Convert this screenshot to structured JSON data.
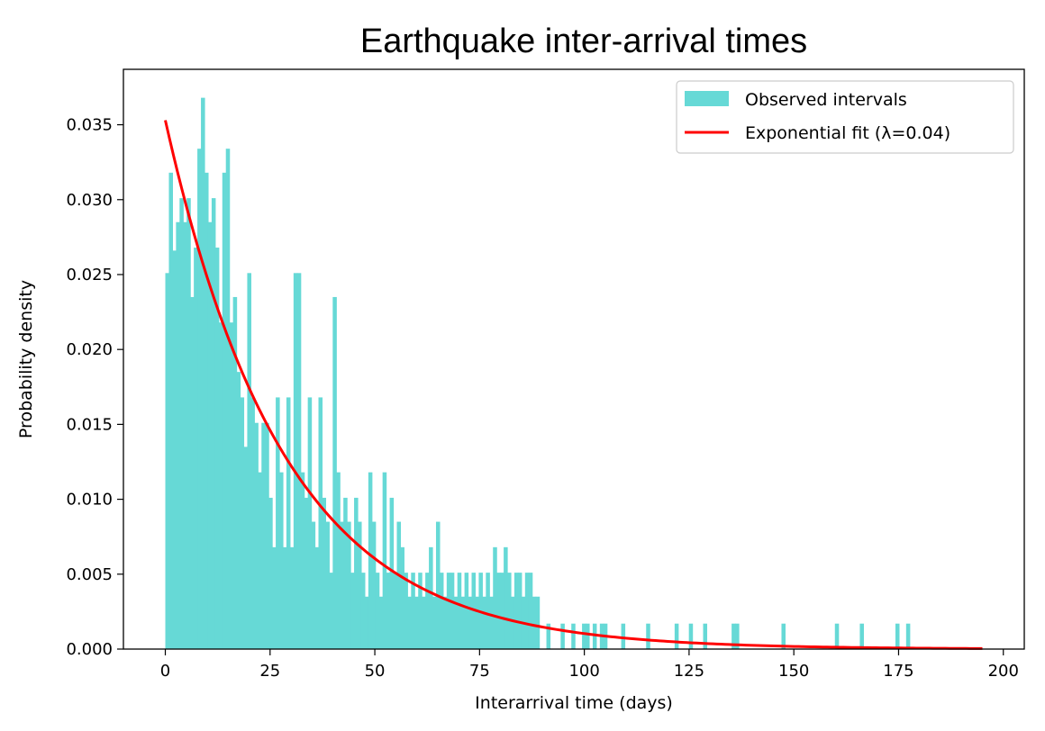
{
  "chart_data": {
    "type": "bar",
    "title": "Earthquake inter-arrival times",
    "xlabel": "Interarrival time (days)",
    "ylabel": "Probability density",
    "xlim": [
      -10,
      205
    ],
    "ylim": [
      0,
      0.0387
    ],
    "xticks": [
      0,
      25,
      50,
      75,
      100,
      125,
      150,
      175,
      200
    ],
    "yticks": [
      0.0,
      0.005,
      0.01,
      0.015,
      0.02,
      0.025,
      0.03,
      0.035
    ],
    "ytick_labels": [
      "0.000",
      "0.005",
      "0.010",
      "0.015",
      "0.020",
      "0.025",
      "0.030",
      "0.035"
    ],
    "legend_position": "upper right",
    "grid": false,
    "histogram": {
      "name": "Observed intervals",
      "color": "#66d9d6",
      "bin_width": 0.845,
      "bins": [
        [
          0.0,
          0.0251
        ],
        [
          0.85,
          0.0318
        ],
        [
          1.7,
          0.0266
        ],
        [
          2.55,
          0.0285
        ],
        [
          3.4,
          0.0301
        ],
        [
          4.25,
          0.0285
        ],
        [
          5.1,
          0.0301
        ],
        [
          5.95,
          0.0235
        ],
        [
          6.8,
          0.0268
        ],
        [
          7.65,
          0.0334
        ],
        [
          8.5,
          0.0368
        ],
        [
          9.35,
          0.0318
        ],
        [
          10.2,
          0.0285
        ],
        [
          11.05,
          0.0301
        ],
        [
          11.9,
          0.0268
        ],
        [
          12.75,
          0.0218
        ],
        [
          13.6,
          0.0318
        ],
        [
          14.45,
          0.0334
        ],
        [
          15.3,
          0.0218
        ],
        [
          16.15,
          0.0235
        ],
        [
          17.0,
          0.0185
        ],
        [
          17.85,
          0.0168
        ],
        [
          18.7,
          0.0135
        ],
        [
          19.55,
          0.0251
        ],
        [
          20.4,
          0.0168
        ],
        [
          21.25,
          0.0151
        ],
        [
          22.1,
          0.0118
        ],
        [
          22.95,
          0.0151
        ],
        [
          23.8,
          0.0151
        ],
        [
          24.65,
          0.0101
        ],
        [
          25.5,
          0.0068
        ],
        [
          26.35,
          0.0168
        ],
        [
          27.2,
          0.0118
        ],
        [
          28.05,
          0.0068
        ],
        [
          28.9,
          0.0168
        ],
        [
          29.75,
          0.0068
        ],
        [
          30.6,
          0.0251
        ],
        [
          31.45,
          0.0251
        ],
        [
          32.3,
          0.0118
        ],
        [
          33.15,
          0.0101
        ],
        [
          34.0,
          0.0168
        ],
        [
          34.85,
          0.0085
        ],
        [
          35.7,
          0.0068
        ],
        [
          36.55,
          0.0168
        ],
        [
          37.4,
          0.0101
        ],
        [
          38.25,
          0.0085
        ],
        [
          39.1,
          0.0051
        ],
        [
          39.95,
          0.0235
        ],
        [
          40.8,
          0.0118
        ],
        [
          41.65,
          0.0085
        ],
        [
          42.5,
          0.0101
        ],
        [
          43.35,
          0.0085
        ],
        [
          44.2,
          0.0051
        ],
        [
          45.05,
          0.0101
        ],
        [
          45.9,
          0.0085
        ],
        [
          46.75,
          0.0051
        ],
        [
          47.6,
          0.0035
        ],
        [
          48.45,
          0.0118
        ],
        [
          49.3,
          0.0085
        ],
        [
          50.15,
          0.0051
        ],
        [
          51.0,
          0.0035
        ],
        [
          51.85,
          0.0118
        ],
        [
          52.7,
          0.0051
        ],
        [
          53.55,
          0.0101
        ],
        [
          54.4,
          0.0051
        ],
        [
          55.25,
          0.0085
        ],
        [
          56.1,
          0.0068
        ],
        [
          56.95,
          0.0051
        ],
        [
          57.8,
          0.0035
        ],
        [
          58.65,
          0.0051
        ],
        [
          59.5,
          0.0035
        ],
        [
          60.35,
          0.0051
        ],
        [
          61.2,
          0.0035
        ],
        [
          62.05,
          0.0051
        ],
        [
          62.9,
          0.0068
        ],
        [
          63.75,
          0.0035
        ],
        [
          64.6,
          0.0085
        ],
        [
          65.45,
          0.0051
        ],
        [
          66.3,
          0.0035
        ],
        [
          67.15,
          0.0051
        ],
        [
          68.0,
          0.0051
        ],
        [
          68.85,
          0.0035
        ],
        [
          69.7,
          0.0051
        ],
        [
          70.55,
          0.0035
        ],
        [
          71.4,
          0.0051
        ],
        [
          72.25,
          0.0035
        ],
        [
          73.1,
          0.0051
        ],
        [
          73.95,
          0.0035
        ],
        [
          74.8,
          0.0051
        ],
        [
          75.65,
          0.0035
        ],
        [
          76.5,
          0.0051
        ],
        [
          77.35,
          0.0035
        ],
        [
          78.2,
          0.0068
        ],
        [
          79.05,
          0.0051
        ],
        [
          79.9,
          0.0051
        ],
        [
          80.75,
          0.0068
        ],
        [
          81.6,
          0.0051
        ],
        [
          82.45,
          0.0035
        ],
        [
          83.3,
          0.0051
        ],
        [
          84.15,
          0.0051
        ],
        [
          85.0,
          0.0035
        ],
        [
          85.85,
          0.0051
        ],
        [
          86.7,
          0.0051
        ],
        [
          87.55,
          0.0035
        ],
        [
          88.4,
          0.0035
        ],
        [
          90.95,
          0.0017
        ],
        [
          94.35,
          0.0017
        ],
        [
          96.9,
          0.0017
        ],
        [
          99.45,
          0.0017
        ],
        [
          100.3,
          0.0017
        ],
        [
          102.0,
          0.0017
        ],
        [
          103.7,
          0.0017
        ],
        [
          104.55,
          0.0017
        ],
        [
          108.8,
          0.0017
        ],
        [
          114.75,
          0.0017
        ],
        [
          121.55,
          0.0017
        ],
        [
          124.95,
          0.0017
        ],
        [
          128.35,
          0.0017
        ],
        [
          135.15,
          0.0017
        ],
        [
          136.0,
          0.0017
        ],
        [
          147.05,
          0.0017
        ],
        [
          159.8,
          0.0017
        ],
        [
          165.75,
          0.0017
        ],
        [
          174.25,
          0.0017
        ],
        [
          176.8,
          0.0017
        ]
      ]
    },
    "fit": {
      "name": "Exponential fit (λ=0.04)",
      "color": "#ff0000",
      "lambda": 0.0353,
      "amplitude": 0.0353,
      "x_start": 0,
      "x_end": 195
    }
  }
}
